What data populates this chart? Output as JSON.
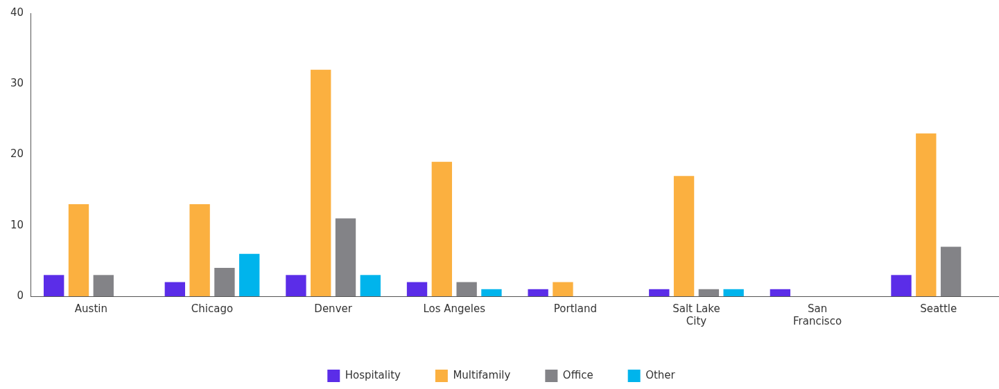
{
  "chart_data": {
    "type": "bar",
    "categories": [
      "Austin",
      "Chicago",
      "Denver",
      "Los Angeles",
      "Portland",
      "Salt Lake City",
      "San Francisco",
      "Seattle"
    ],
    "series": [
      {
        "name": "Hospitality",
        "color": "#5b2de8",
        "values": [
          3,
          2,
          3,
          2,
          1,
          1,
          1,
          3
        ]
      },
      {
        "name": "Multifamily",
        "color": "#fbb040",
        "values": [
          13,
          13,
          32,
          19,
          2,
          17,
          null,
          23
        ]
      },
      {
        "name": "Office",
        "color": "#838387",
        "values": [
          3,
          4,
          11,
          2,
          null,
          1,
          null,
          7
        ]
      },
      {
        "name": "Other",
        "color": "#00b4ec",
        "values": [
          null,
          6,
          3,
          1,
          null,
          1,
          null,
          null
        ]
      }
    ],
    "ylim": [
      0,
      40
    ],
    "yticks": [
      0,
      10,
      20,
      30,
      40
    ],
    "grid": false,
    "legend": "bottom"
  }
}
